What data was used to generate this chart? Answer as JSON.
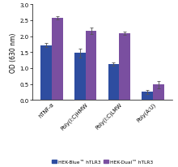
{
  "categories": [
    "hTNF-α",
    "Poly(I:C)HMW",
    "Poly(I:C)LMW",
    "Poly(A:U)"
  ],
  "hek_blue_values": [
    1.72,
    1.47,
    1.12,
    0.25
  ],
  "hek_dual_values": [
    2.58,
    2.16,
    2.09,
    0.48
  ],
  "hek_blue_errors": [
    0.06,
    0.14,
    0.05,
    0.06
  ],
  "hek_dual_errors": [
    0.05,
    0.1,
    0.06,
    0.12
  ],
  "hek_blue_color": "#2e4da0",
  "hek_dual_color": "#7a4fa0",
  "ylabel": "OD (630 nm)",
  "ylim": [
    0,
    3.0
  ],
  "yticks": [
    0.0,
    0.5,
    1.0,
    1.5,
    2.0,
    2.5,
    3.0
  ],
  "legend_blue": "HEK-Blue™ hTLR3",
  "legend_dual": "HEK-Dual™ hTLR3",
  "bar_width": 0.28,
  "figsize": [
    2.2,
    2.07
  ],
  "dpi": 100
}
